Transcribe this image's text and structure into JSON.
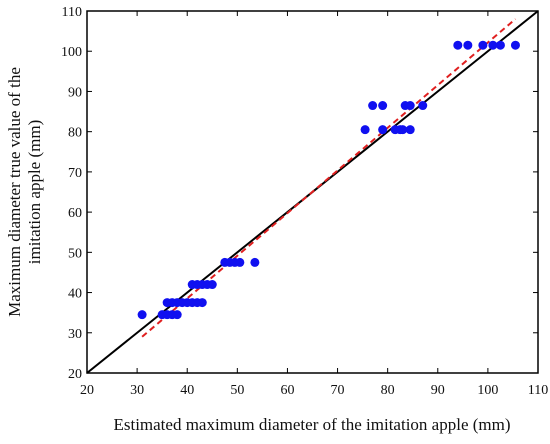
{
  "chart_data": {
    "type": "scatter",
    "xlabel": "Estimated maximum diameter of the imitation apple (mm)",
    "ylabel_lines": [
      "Maximum diameter true value of the",
      "imitation apple (mm)"
    ],
    "xlim": [
      20,
      110
    ],
    "ylim": [
      20,
      110
    ],
    "xticks": [
      20,
      30,
      40,
      50,
      60,
      70,
      80,
      90,
      100,
      110
    ],
    "yticks": [
      20,
      30,
      40,
      50,
      60,
      70,
      80,
      90,
      100,
      110
    ],
    "grid": false,
    "legend": "none",
    "colors": {
      "points": "#1010f0",
      "identity_line": "#000000",
      "fit_line": "#e02020",
      "axes": "#000000"
    },
    "series": [
      {
        "type": "scatter",
        "points": [
          [
            31,
            34.5
          ],
          [
            35,
            34.5
          ],
          [
            36,
            34.5
          ],
          [
            37,
            34.5
          ],
          [
            38,
            34.5
          ],
          [
            36,
            37.5
          ],
          [
            37,
            37.5
          ],
          [
            38,
            37.5
          ],
          [
            39,
            37.5
          ],
          [
            40,
            37.5
          ],
          [
            41,
            37.5
          ],
          [
            42,
            37.5
          ],
          [
            43,
            37.5
          ],
          [
            41,
            42
          ],
          [
            42,
            42
          ],
          [
            43,
            42
          ],
          [
            44,
            42
          ],
          [
            45,
            42
          ],
          [
            47.5,
            47.5
          ],
          [
            48.5,
            47.5
          ],
          [
            49.5,
            47.5
          ],
          [
            50.5,
            47.5
          ],
          [
            53.5,
            47.5
          ],
          [
            75.5,
            80.5
          ],
          [
            79,
            80.5
          ],
          [
            81.5,
            80.5
          ],
          [
            82.5,
            80.5
          ],
          [
            83,
            80.5
          ],
          [
            84.5,
            80.5
          ],
          [
            77,
            86.5
          ],
          [
            79,
            86.5
          ],
          [
            83.5,
            86.5
          ],
          [
            84.5,
            86.5
          ],
          [
            87,
            86.5
          ],
          [
            94,
            101.5
          ],
          [
            96,
            101.5
          ],
          [
            99,
            101.5
          ],
          [
            101,
            101.5
          ],
          [
            102.5,
            101.5
          ],
          [
            105.5,
            101.5
          ]
        ]
      },
      {
        "type": "line",
        "style": "solid",
        "points": [
          [
            20,
            20
          ],
          [
            110,
            110
          ]
        ]
      },
      {
        "type": "line",
        "style": "dashed",
        "points": [
          [
            31,
            29
          ],
          [
            105.5,
            108
          ]
        ]
      }
    ]
  }
}
